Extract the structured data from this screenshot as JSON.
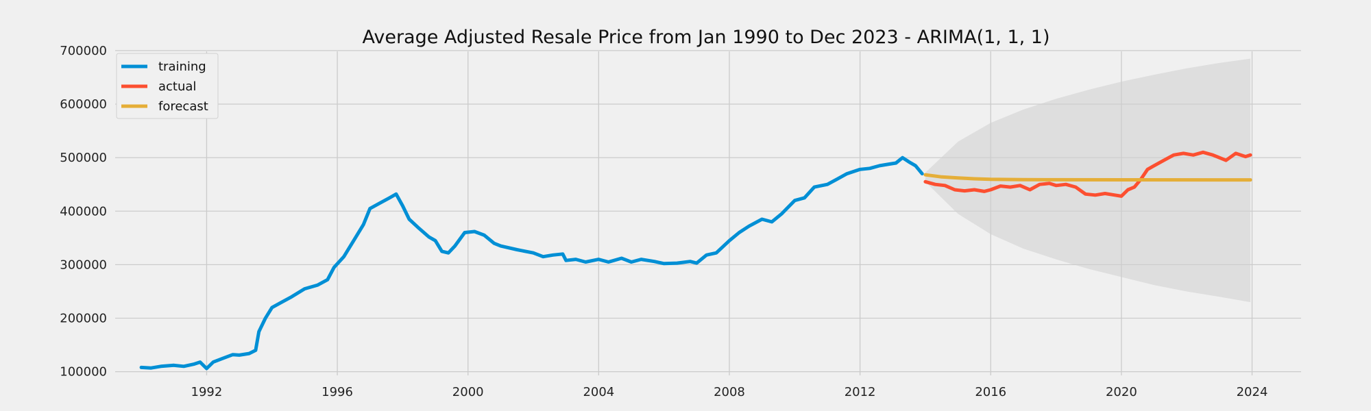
{
  "chart_data": {
    "type": "line",
    "title": "Average Adjusted Resale Price from Jan 1990 to Dec 2023 - ARIMA(1, 1, 1)",
    "xlabel": "",
    "ylabel": "",
    "xlim": [
      1989.2,
      2025.5
    ],
    "ylim": [
      97000,
      705000
    ],
    "grid": true,
    "legend_placement": "top-left",
    "x_ticks": [
      {
        "value": 1992,
        "label": "1992"
      },
      {
        "value": 1996,
        "label": "1996"
      },
      {
        "value": 2000,
        "label": "2000"
      },
      {
        "value": 2004,
        "label": "2004"
      },
      {
        "value": 2008,
        "label": "2008"
      },
      {
        "value": 2012,
        "label": "2012"
      },
      {
        "value": 2016,
        "label": "2016"
      },
      {
        "value": 2020,
        "label": "2020"
      },
      {
        "value": 2024,
        "label": "2024"
      }
    ],
    "y_ticks": [
      {
        "value": 100000,
        "label": "100000"
      },
      {
        "value": 200000,
        "label": "200000"
      },
      {
        "value": 300000,
        "label": "300000"
      },
      {
        "value": 400000,
        "label": "400000"
      },
      {
        "value": 500000,
        "label": "500000"
      },
      {
        "value": 600000,
        "label": "600000"
      },
      {
        "value": 700000,
        "label": "700000"
      }
    ],
    "series": [
      {
        "name": "training",
        "color": "#008fd5",
        "points": [
          [
            1990.0,
            108000
          ],
          [
            1990.3,
            107000
          ],
          [
            1990.6,
            110000
          ],
          [
            1991.0,
            112000
          ],
          [
            1991.3,
            110000
          ],
          [
            1991.6,
            114000
          ],
          [
            1991.8,
            118000
          ],
          [
            1992.0,
            106000
          ],
          [
            1992.2,
            118000
          ],
          [
            1992.5,
            125000
          ],
          [
            1992.8,
            132000
          ],
          [
            1993.0,
            131000
          ],
          [
            1993.3,
            134000
          ],
          [
            1993.5,
            140000
          ],
          [
            1993.6,
            175000
          ],
          [
            1993.8,
            200000
          ],
          [
            1994.0,
            220000
          ],
          [
            1994.3,
            230000
          ],
          [
            1994.6,
            240000
          ],
          [
            1995.0,
            255000
          ],
          [
            1995.4,
            262000
          ],
          [
            1995.7,
            272000
          ],
          [
            1995.9,
            295000
          ],
          [
            1996.2,
            315000
          ],
          [
            1996.5,
            345000
          ],
          [
            1996.8,
            375000
          ],
          [
            1997.0,
            405000
          ],
          [
            1997.3,
            415000
          ],
          [
            1997.6,
            425000
          ],
          [
            1997.8,
            432000
          ],
          [
            1998.0,
            410000
          ],
          [
            1998.2,
            385000
          ],
          [
            1998.5,
            368000
          ],
          [
            1998.8,
            352000
          ],
          [
            1999.0,
            345000
          ],
          [
            1999.2,
            325000
          ],
          [
            1999.4,
            322000
          ],
          [
            1999.6,
            335000
          ],
          [
            1999.9,
            360000
          ],
          [
            2000.2,
            362000
          ],
          [
            2000.5,
            355000
          ],
          [
            2000.8,
            340000
          ],
          [
            2001.0,
            335000
          ],
          [
            2001.5,
            328000
          ],
          [
            2002.0,
            322000
          ],
          [
            2002.3,
            315000
          ],
          [
            2002.6,
            318000
          ],
          [
            2002.9,
            320000
          ],
          [
            2003.0,
            308000
          ],
          [
            2003.3,
            310000
          ],
          [
            2003.6,
            305000
          ],
          [
            2004.0,
            310000
          ],
          [
            2004.3,
            305000
          ],
          [
            2004.7,
            312000
          ],
          [
            2005.0,
            305000
          ],
          [
            2005.3,
            310000
          ],
          [
            2005.7,
            306000
          ],
          [
            2006.0,
            302000
          ],
          [
            2006.4,
            303000
          ],
          [
            2006.8,
            306000
          ],
          [
            2007.0,
            303000
          ],
          [
            2007.3,
            318000
          ],
          [
            2007.6,
            322000
          ],
          [
            2008.0,
            345000
          ],
          [
            2008.3,
            360000
          ],
          [
            2008.6,
            372000
          ],
          [
            2009.0,
            385000
          ],
          [
            2009.3,
            380000
          ],
          [
            2009.6,
            395000
          ],
          [
            2010.0,
            420000
          ],
          [
            2010.3,
            425000
          ],
          [
            2010.6,
            445000
          ],
          [
            2011.0,
            450000
          ],
          [
            2011.3,
            460000
          ],
          [
            2011.6,
            470000
          ],
          [
            2012.0,
            478000
          ],
          [
            2012.3,
            480000
          ],
          [
            2012.6,
            485000
          ],
          [
            2012.9,
            488000
          ],
          [
            2013.1,
            490000
          ],
          [
            2013.3,
            500000
          ],
          [
            2013.5,
            492000
          ],
          [
            2013.7,
            485000
          ],
          [
            2013.9,
            470000
          ]
        ]
      },
      {
        "name": "actual",
        "color": "#fc4f30",
        "points": [
          [
            2014.0,
            455000
          ],
          [
            2014.3,
            450000
          ],
          [
            2014.6,
            448000
          ],
          [
            2014.9,
            440000
          ],
          [
            2015.2,
            438000
          ],
          [
            2015.5,
            440000
          ],
          [
            2015.8,
            437000
          ],
          [
            2016.0,
            440000
          ],
          [
            2016.3,
            447000
          ],
          [
            2016.6,
            445000
          ],
          [
            2016.9,
            448000
          ],
          [
            2017.2,
            440000
          ],
          [
            2017.5,
            450000
          ],
          [
            2017.8,
            452000
          ],
          [
            2018.0,
            448000
          ],
          [
            2018.3,
            450000
          ],
          [
            2018.6,
            445000
          ],
          [
            2018.9,
            432000
          ],
          [
            2019.2,
            430000
          ],
          [
            2019.5,
            433000
          ],
          [
            2019.8,
            430000
          ],
          [
            2020.0,
            428000
          ],
          [
            2020.2,
            440000
          ],
          [
            2020.4,
            445000
          ],
          [
            2020.6,
            460000
          ],
          [
            2020.8,
            478000
          ],
          [
            2021.0,
            485000
          ],
          [
            2021.3,
            495000
          ],
          [
            2021.6,
            505000
          ],
          [
            2021.9,
            508000
          ],
          [
            2022.2,
            505000
          ],
          [
            2022.5,
            510000
          ],
          [
            2022.8,
            505000
          ],
          [
            2023.0,
            500000
          ],
          [
            2023.2,
            495000
          ],
          [
            2023.5,
            508000
          ],
          [
            2023.8,
            502000
          ],
          [
            2023.95,
            505000
          ]
        ]
      },
      {
        "name": "forecast",
        "color": "#e5ae38",
        "points": [
          [
            2014.0,
            468000
          ],
          [
            2014.5,
            464000
          ],
          [
            2015.0,
            462000
          ],
          [
            2015.5,
            460500
          ],
          [
            2016.0,
            459500
          ],
          [
            2017.0,
            459000
          ],
          [
            2018.0,
            458700
          ],
          [
            2020.0,
            458600
          ],
          [
            2023.95,
            458500
          ]
        ]
      }
    ],
    "confidence_band": {
      "upper": [
        [
          2014.0,
          472000
        ],
        [
          2015.0,
          530000
        ],
        [
          2016.0,
          565000
        ],
        [
          2017.0,
          590000
        ],
        [
          2018.0,
          610000
        ],
        [
          2019.0,
          627000
        ],
        [
          2020.0,
          642000
        ],
        [
          2021.0,
          655000
        ],
        [
          2022.0,
          667000
        ],
        [
          2023.0,
          677000
        ],
        [
          2023.95,
          685000
        ]
      ],
      "lower": [
        [
          2014.0,
          455000
        ],
        [
          2015.0,
          395000
        ],
        [
          2016.0,
          357000
        ],
        [
          2017.0,
          330000
        ],
        [
          2018.0,
          310000
        ],
        [
          2019.0,
          292000
        ],
        [
          2020.0,
          277000
        ],
        [
          2021.0,
          262000
        ],
        [
          2022.0,
          250000
        ],
        [
          2023.0,
          240000
        ],
        [
          2023.95,
          230000
        ]
      ],
      "color": "#d0d0d0"
    }
  },
  "colors": {
    "background": "#f0f0f0",
    "grid": "#cbcbcb"
  }
}
